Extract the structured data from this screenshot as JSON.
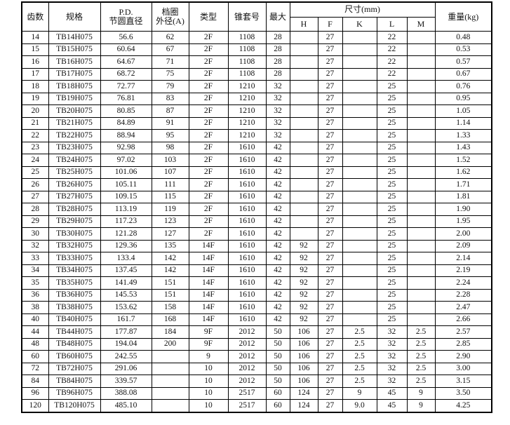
{
  "headers": {
    "teeth": "齿数",
    "spec": "规格",
    "pd1": "P.D.",
    "pd2": "节圆直径",
    "rim1": "档圈",
    "rim2": "外径(A)",
    "type": "类型",
    "bush": "锥套号",
    "max": "最大",
    "dims": "尺寸(mm)",
    "H": "H",
    "F": "F",
    "K": "K",
    "L": "L",
    "M": "M",
    "weight": "重量(kg)"
  },
  "rows": [
    [
      "14",
      "TB14H075",
      "56.6",
      "62",
      "2F",
      "1108",
      "28",
      "",
      "27",
      "",
      "22",
      "",
      "0.48"
    ],
    [
      "15",
      "TB15H075",
      "60.64",
      "67",
      "2F",
      "1108",
      "28",
      "",
      "27",
      "",
      "22",
      "",
      "0.53"
    ],
    [
      "16",
      "TB16H075",
      "64.67",
      "71",
      "2F",
      "1108",
      "28",
      "",
      "27",
      "",
      "22",
      "",
      "0.57"
    ],
    [
      "17",
      "TB17H075",
      "68.72",
      "75",
      "2F",
      "1108",
      "28",
      "",
      "27",
      "",
      "22",
      "",
      "0.67"
    ],
    [
      "18",
      "TB18H075",
      "72.77",
      "79",
      "2F",
      "1210",
      "32",
      "",
      "27",
      "",
      "25",
      "",
      "0.76"
    ],
    [
      "19",
      "TB19H075",
      "76.81",
      "83",
      "2F",
      "1210",
      "32",
      "",
      "27",
      "",
      "25",
      "",
      "0.95"
    ],
    [
      "20",
      "TB20H075",
      "80.85",
      "87",
      "2F",
      "1210",
      "32",
      "",
      "27",
      "",
      "25",
      "",
      "1.05"
    ],
    [
      "21",
      "TB21H075",
      "84.89",
      "91",
      "2F",
      "1210",
      "32",
      "",
      "27",
      "",
      "25",
      "",
      "1.14"
    ],
    [
      "22",
      "TB22H075",
      "88.94",
      "95",
      "2F",
      "1210",
      "32",
      "",
      "27",
      "",
      "25",
      "",
      "1.33"
    ],
    [
      "23",
      "TB23H075",
      "92.98",
      "98",
      "2F",
      "1610",
      "42",
      "",
      "27",
      "",
      "25",
      "",
      "1.43"
    ],
    [
      "24",
      "TB24H075",
      "97.02",
      "103",
      "2F",
      "1610",
      "42",
      "",
      "27",
      "",
      "25",
      "",
      "1.52"
    ],
    [
      "25",
      "TB25H075",
      "101.06",
      "107",
      "2F",
      "1610",
      "42",
      "",
      "27",
      "",
      "25",
      "",
      "1.62"
    ],
    [
      "26",
      "TB26H075",
      "105.11",
      "111",
      "2F",
      "1610",
      "42",
      "",
      "27",
      "",
      "25",
      "",
      "1.71"
    ],
    [
      "27",
      "TB27H075",
      "109.15",
      "115",
      "2F",
      "1610",
      "42",
      "",
      "27",
      "",
      "25",
      "",
      "1.81"
    ],
    [
      "28",
      "TB28H075",
      "113.19",
      "119",
      "2F",
      "1610",
      "42",
      "",
      "27",
      "",
      "25",
      "",
      "1.90"
    ],
    [
      "29",
      "TB29H075",
      "117.23",
      "123",
      "2F",
      "1610",
      "42",
      "",
      "27",
      "",
      "25",
      "",
      "1.95"
    ],
    [
      "30",
      "TB30H075",
      "121.28",
      "127",
      "2F",
      "1610",
      "42",
      "",
      "27",
      "",
      "25",
      "",
      "2.00"
    ],
    [
      "32",
      "TB32H075",
      "129.36",
      "135",
      "14F",
      "1610",
      "42",
      "92",
      "27",
      "",
      "25",
      "",
      "2.09"
    ],
    [
      "33",
      "TB33H075",
      "133.4",
      "142",
      "14F",
      "1610",
      "42",
      "92",
      "27",
      "",
      "25",
      "",
      "2.14"
    ],
    [
      "34",
      "TB34H075",
      "137.45",
      "142",
      "14F",
      "1610",
      "42",
      "92",
      "27",
      "",
      "25",
      "",
      "2.19"
    ],
    [
      "35",
      "TB35H075",
      "141.49",
      "151",
      "14F",
      "1610",
      "42",
      "92",
      "27",
      "",
      "25",
      "",
      "2.24"
    ],
    [
      "36",
      "TB36H075",
      "145.53",
      "151",
      "14F",
      "1610",
      "42",
      "92",
      "27",
      "",
      "25",
      "",
      "2.28"
    ],
    [
      "38",
      "TB38H075",
      "153.62",
      "158",
      "14F",
      "1610",
      "42",
      "92",
      "27",
      "",
      "25",
      "",
      "2.47"
    ],
    [
      "40",
      "TB40H075",
      "161.7",
      "168",
      "14F",
      "1610",
      "42",
      "92",
      "27",
      "",
      "25",
      "",
      "2.66"
    ],
    [
      "44",
      "TB44H075",
      "177.87",
      "184",
      "9F",
      "2012",
      "50",
      "106",
      "27",
      "2.5",
      "32",
      "2.5",
      "2.57"
    ],
    [
      "48",
      "TB48H075",
      "194.04",
      "200",
      "9F",
      "2012",
      "50",
      "106",
      "27",
      "2.5",
      "32",
      "2.5",
      "2.85"
    ],
    [
      "60",
      "TB60H075",
      "242.55",
      "",
      "9",
      "2012",
      "50",
      "106",
      "27",
      "2.5",
      "32",
      "2.5",
      "2.90"
    ],
    [
      "72",
      "TB72H075",
      "291.06",
      "",
      "10",
      "2012",
      "50",
      "106",
      "27",
      "2.5",
      "32",
      "2.5",
      "3.00"
    ],
    [
      "84",
      "TB84H075",
      "339.57",
      "",
      "10",
      "2012",
      "50",
      "106",
      "27",
      "2.5",
      "32",
      "2.5",
      "3.15"
    ],
    [
      "96",
      "TB96H075",
      "388.08",
      "",
      "10",
      "2517",
      "60",
      "124",
      "27",
      "9",
      "45",
      "9",
      "3.50"
    ],
    [
      "120",
      "TB120H075",
      "485.10",
      "",
      "10",
      "2517",
      "60",
      "124",
      "27",
      "9.0",
      "45",
      "9",
      "4.25"
    ]
  ]
}
